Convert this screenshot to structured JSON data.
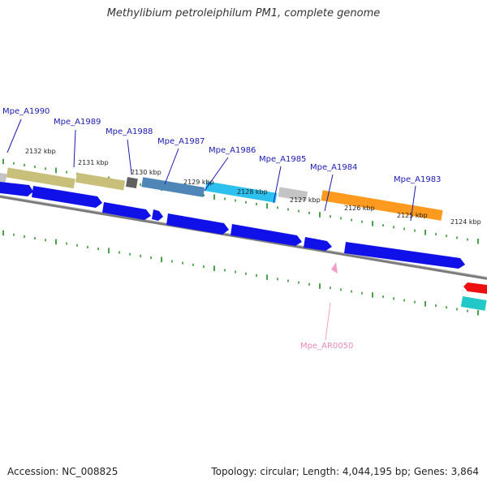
{
  "title": "Methylibium petroleiphilum PM1, complete genome",
  "footer": {
    "accession": "Accession: NC_008825",
    "topology": "Topology: circular; Length: 4,044,195 bp; Genes: 3,864"
  },
  "gene_labels": [
    "Mpe_A1990",
    "Mpe_A1989",
    "Mpe_A1988",
    "Mpe_A1987",
    "Mpe_A1986",
    "Mpe_A1985",
    "Mpe_A1984",
    "Mpe_A1983"
  ],
  "rna_label": "Mpe_AR0050",
  "kbp_labels": [
    "2132 kbp",
    "2131 kbp",
    "2130 kbp",
    "2129 kbp",
    "2128 kbp",
    "2127 kbp",
    "2126 kbp",
    "2125 kbp",
    "2124 kbp"
  ],
  "colors": {
    "cds": "#1010e8",
    "backbone": "#808080",
    "ticks": "#1a8a1a",
    "label": "#1a1ab0",
    "rna": "#f0a0c8",
    "cog_gray": "#c4c4c4",
    "cog_olive": "#c8c07a",
    "cog_dark": "#606060",
    "cog_steel": "#4e86b8",
    "cog_cyan": "#2cc0ee",
    "cog_orange": "#ff9a1e",
    "red": "#ee1010",
    "teal": "#22c8c8"
  }
}
